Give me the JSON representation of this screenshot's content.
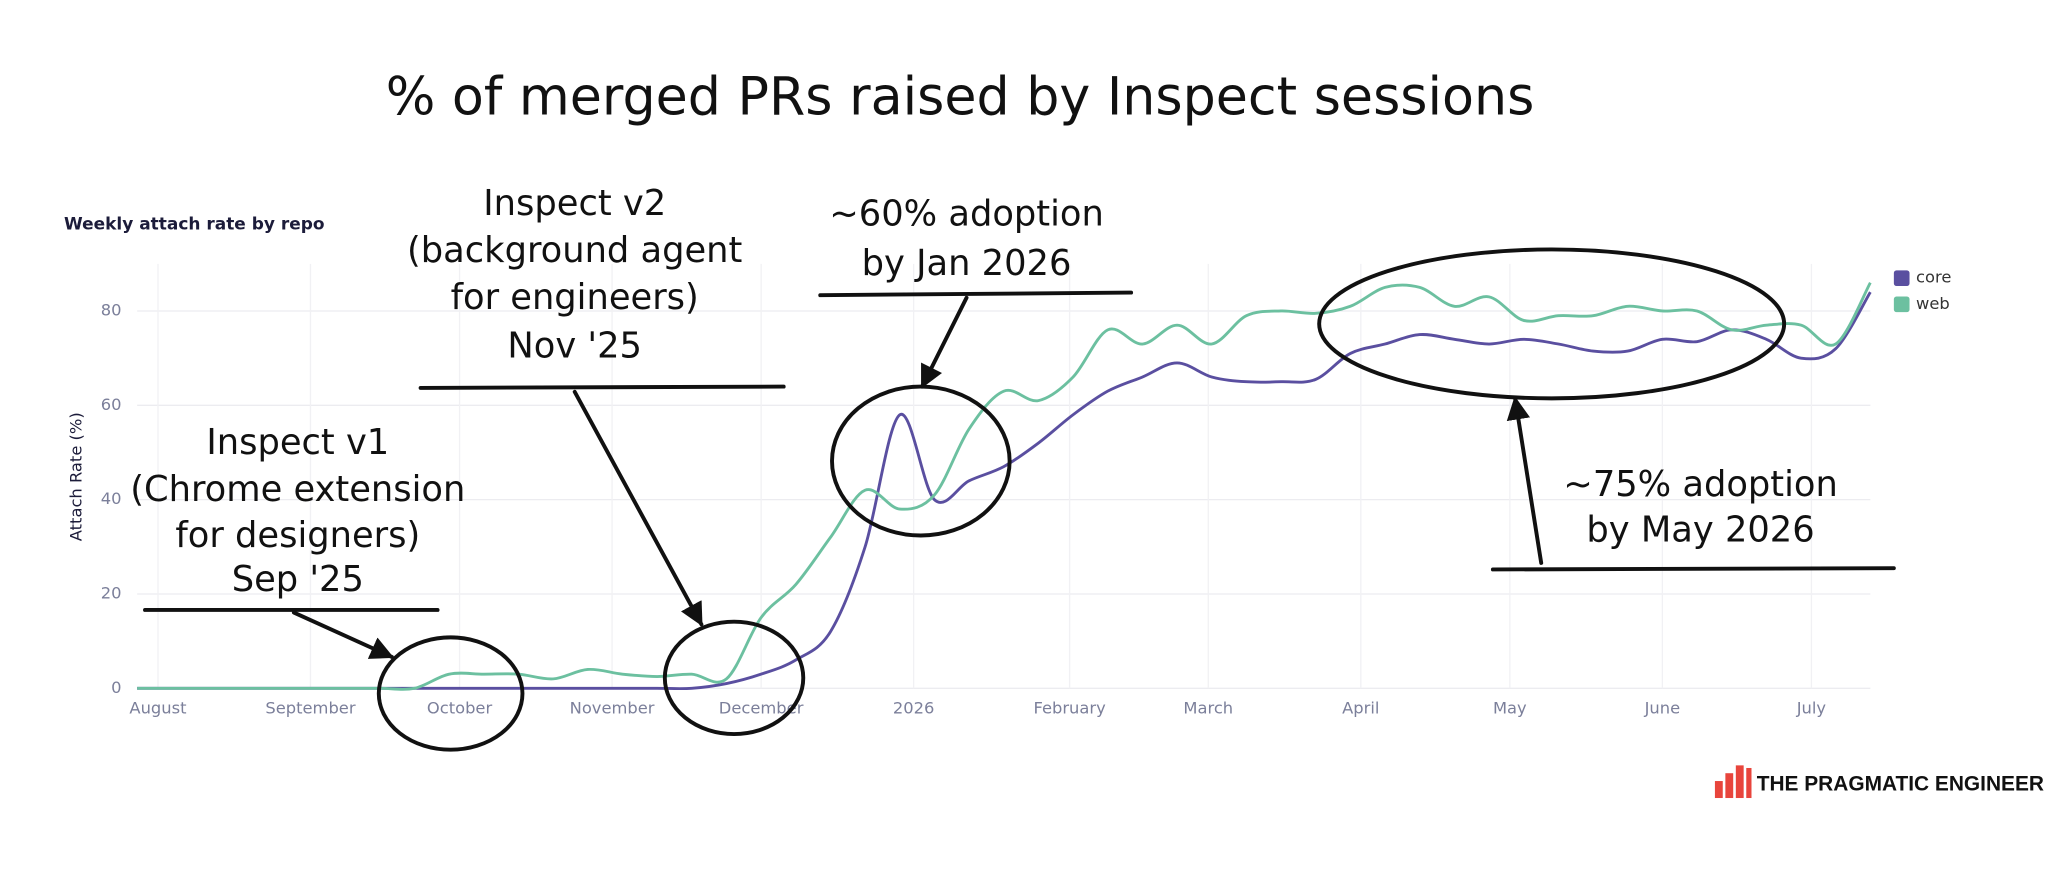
{
  "chart_data": {
    "type": "line",
    "title": "% of merged PRs raised by Inspect sessions",
    "subtitle": "Weekly attach rate by repo",
    "y_label": "Attach Rate (%)",
    "x": [
      0,
      1,
      2,
      3,
      4,
      5,
      6,
      7,
      8,
      9,
      10,
      11,
      12,
      13,
      14,
      15,
      16,
      17,
      18,
      19,
      20,
      21,
      22,
      23,
      24,
      25,
      26,
      27,
      28,
      29,
      30,
      31,
      32,
      33,
      34,
      35,
      36,
      37,
      38,
      39,
      40,
      41,
      42,
      43,
      44,
      45,
      46,
      47,
      48,
      49,
      50
    ],
    "xlim": [
      0,
      50
    ],
    "xticks": [
      {
        "value": 0.6,
        "label": "August"
      },
      {
        "value": 5.0,
        "label": "September"
      },
      {
        "value": 9.3,
        "label": "October"
      },
      {
        "value": 13.7,
        "label": "November"
      },
      {
        "value": 18.0,
        "label": "December"
      },
      {
        "value": 22.4,
        "label": "2026"
      },
      {
        "value": 26.9,
        "label": "February"
      },
      {
        "value": 30.9,
        "label": "March"
      },
      {
        "value": 35.3,
        "label": "April"
      },
      {
        "value": 39.6,
        "label": "May"
      },
      {
        "value": 44.0,
        "label": "June"
      },
      {
        "value": 48.3,
        "label": "July"
      }
    ],
    "ylim": [
      0,
      90
    ],
    "yticks": [
      0,
      20,
      40,
      60,
      80
    ],
    "grid": true,
    "legend": "top-right",
    "series": [
      {
        "name": "core",
        "color": "#5a4fa0",
        "values": [
          0,
          0,
          0,
          0,
          0,
          0,
          0,
          0,
          0,
          0,
          0,
          0,
          0,
          0,
          0,
          0,
          0,
          1,
          3,
          6,
          12,
          30,
          58,
          40,
          44,
          47,
          52,
          58,
          63,
          66,
          69,
          66,
          65,
          65,
          65.5,
          71,
          73,
          75,
          74,
          73,
          74,
          73,
          71.5,
          71.5,
          74,
          73.5,
          76,
          74,
          70,
          72,
          84
        ]
      },
      {
        "name": "web",
        "color": "#6cc0a0",
        "values": [
          0,
          0,
          0,
          0,
          0,
          0,
          0,
          0,
          0,
          3,
          3,
          3,
          2,
          4,
          3,
          2.5,
          3,
          2,
          15,
          22,
          32,
          42,
          38,
          41,
          55,
          63,
          61,
          66,
          76,
          73,
          77,
          73,
          79,
          80,
          79.5,
          81,
          85,
          85,
          81,
          83,
          78,
          79,
          79,
          81,
          80,
          80,
          76,
          77,
          77,
          73,
          86
        ]
      }
    ],
    "annotations": [
      {
        "lines": [
          "Inspect v1",
          "(Chrome extension",
          "for designers)",
          "Sep '25"
        ]
      },
      {
        "lines": [
          "Inspect v2",
          "(background agent",
          "for engineers)",
          "Nov '25"
        ]
      },
      {
        "lines": [
          "~60% adoption",
          "by Jan 2026"
        ]
      },
      {
        "lines": [
          "~75% adoption",
          "by May 2026"
        ]
      }
    ],
    "brand": "THE PRAGMATIC ENGINEER"
  }
}
